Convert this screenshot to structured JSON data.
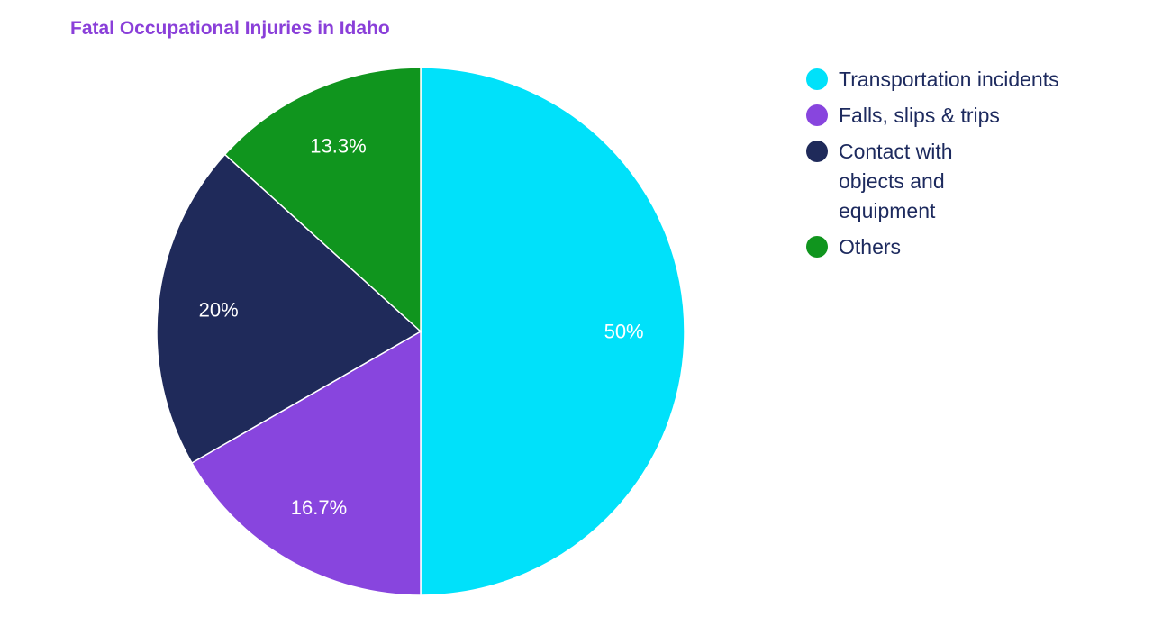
{
  "chart_data": {
    "type": "pie",
    "title": "Fatal Occupational Injuries in Idaho",
    "legend_position": "right",
    "slices": [
      {
        "label": "Transportation incidents",
        "value": 50,
        "display": "50%",
        "color": "#00e1fa"
      },
      {
        "label": "Falls, slips & trips",
        "value": 16.7,
        "display": "16.7%",
        "color": "#8845de"
      },
      {
        "label": "Contact with objects and equipment",
        "value": 20,
        "display": "20%",
        "color": "#1f2a5a"
      },
      {
        "label": "Others",
        "value": 13.3,
        "display": "13.3%",
        "color": "#10951e"
      }
    ]
  }
}
